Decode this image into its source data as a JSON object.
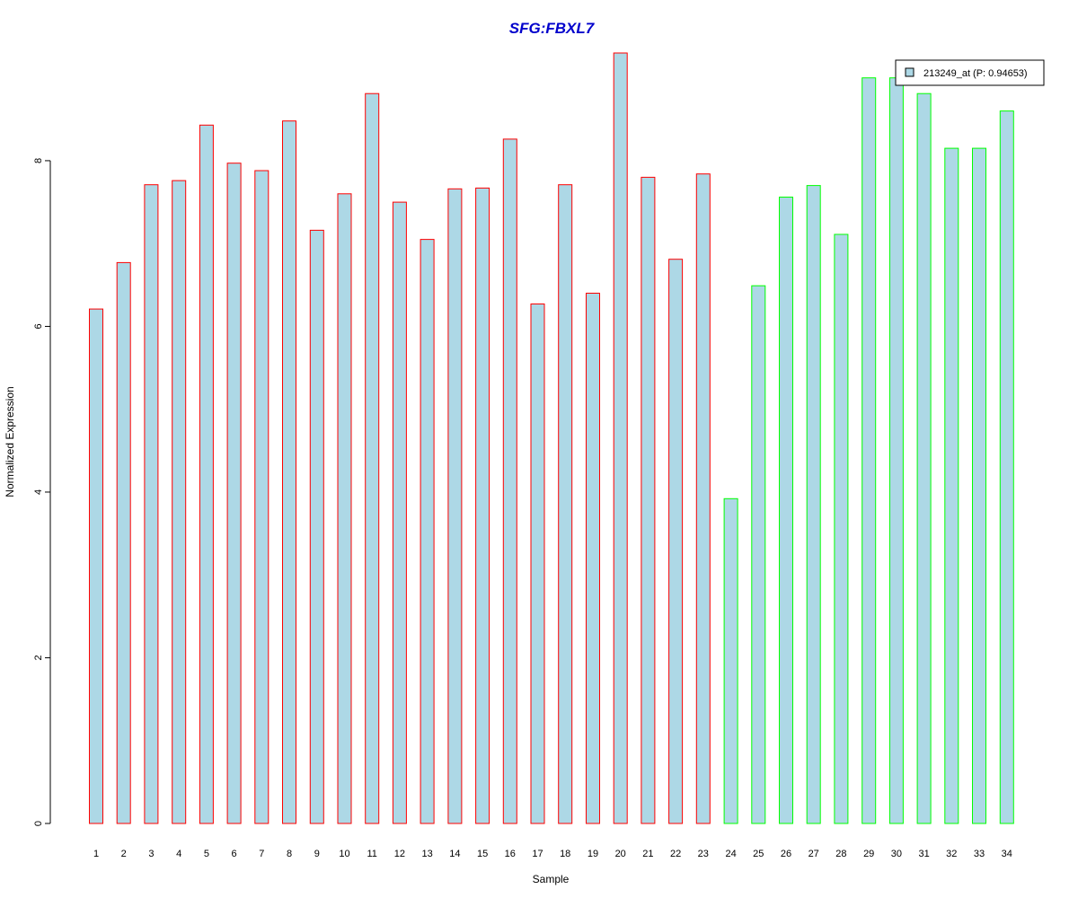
{
  "chart_data": {
    "type": "bar",
    "title": "SFG:FBXL7",
    "xlabel": "Sample",
    "ylabel": "Normalized Expression",
    "ylim": [
      0,
      9.3
    ],
    "yticks": [
      0,
      2,
      4,
      6,
      8
    ],
    "grid": false,
    "legend_position": "top-right",
    "legend": [
      {
        "label": "213249_at (P: 0.94653)",
        "fill": "#add8e6"
      }
    ],
    "categories": [
      "1",
      "2",
      "3",
      "4",
      "5",
      "6",
      "7",
      "8",
      "9",
      "10",
      "11",
      "12",
      "13",
      "14",
      "15",
      "16",
      "17",
      "18",
      "19",
      "20",
      "21",
      "22",
      "23",
      "24",
      "25",
      "26",
      "27",
      "28",
      "29",
      "30",
      "31",
      "32",
      "33",
      "34"
    ],
    "values": [
      6.21,
      6.77,
      7.71,
      7.76,
      8.43,
      7.97,
      7.88,
      8.48,
      7.16,
      7.6,
      8.81,
      7.5,
      7.05,
      7.66,
      7.67,
      8.26,
      6.27,
      7.71,
      6.4,
      9.3,
      7.8,
      6.81,
      7.84,
      3.92,
      6.49,
      7.56,
      7.7,
      7.11,
      9.0,
      9.0,
      8.81,
      8.15,
      8.15,
      8.6
    ],
    "groups": [
      {
        "samples_from": 1,
        "samples_to": 23,
        "border_color": "#ff0000"
      },
      {
        "samples_from": 24,
        "samples_to": 34,
        "border_color": "#00ff00"
      }
    ],
    "bar_fill": "#add8e6"
  }
}
